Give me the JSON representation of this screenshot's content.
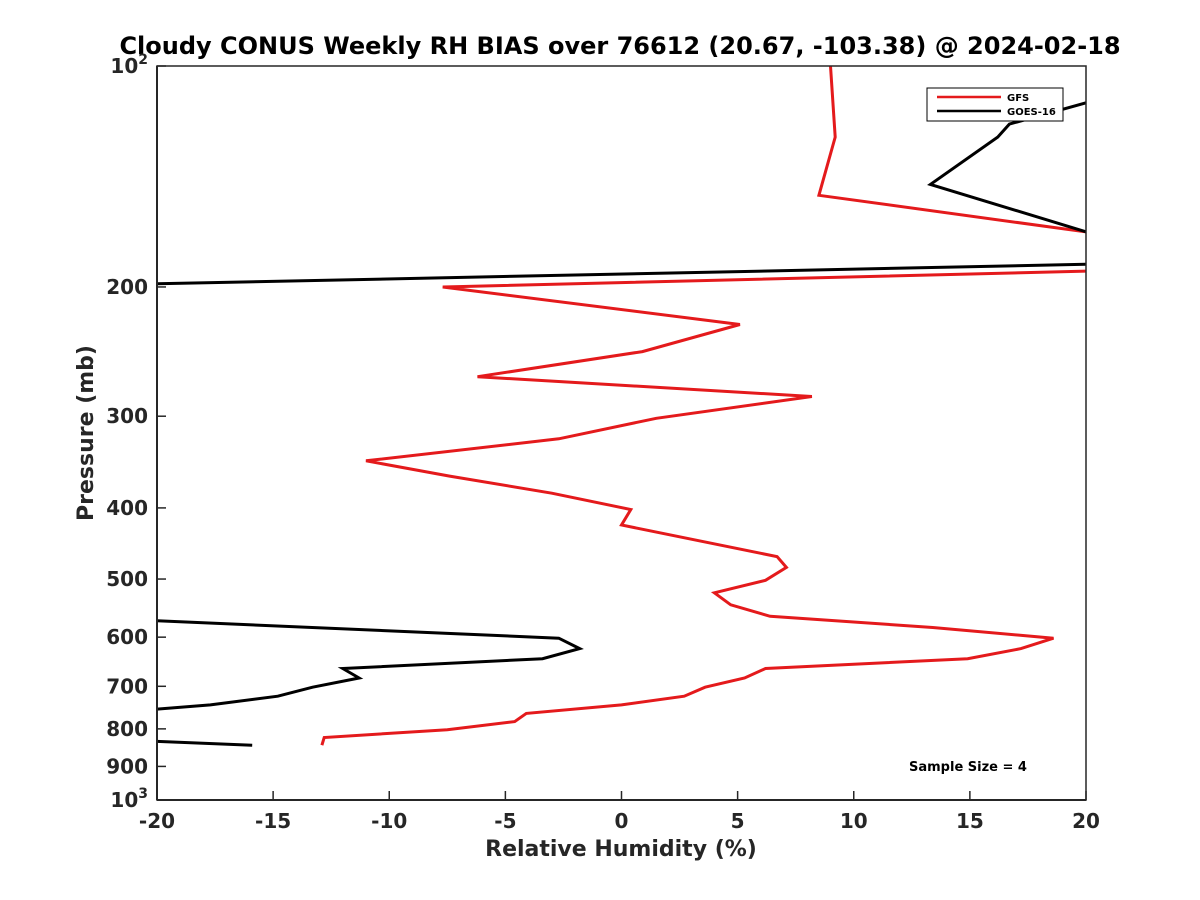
{
  "chart_data": {
    "type": "line",
    "title": "Cloudy CONUS Weekly RH BIAS over 76612 (20.67, -103.38) @ 2024-02-18",
    "xlabel": "Relative Humidity (%)",
    "ylabel": "Pressure (mb)",
    "xlim": [
      -20,
      20
    ],
    "ylim": [
      100,
      1000
    ],
    "yscale": "log",
    "yreversed": true,
    "grid": false,
    "legend_position": "top-right",
    "annotation": "Sample Size = 4",
    "x_ticks": [
      {
        "value": -20,
        "label": "-20"
      },
      {
        "value": -15,
        "label": "-15"
      },
      {
        "value": -10,
        "label": "-10"
      },
      {
        "value": -5,
        "label": "-5"
      },
      {
        "value": 0,
        "label": "0"
      },
      {
        "value": 5,
        "label": "5"
      },
      {
        "value": 10,
        "label": "10"
      },
      {
        "value": 15,
        "label": "15"
      },
      {
        "value": 20,
        "label": "20"
      }
    ],
    "y_ticks": [
      {
        "value": 100,
        "base": "10",
        "exp": "2"
      },
      {
        "value": 200,
        "label": "200"
      },
      {
        "value": 300,
        "label": "300"
      },
      {
        "value": 400,
        "label": "400"
      },
      {
        "value": 500,
        "label": "500"
      },
      {
        "value": 600,
        "label": "600"
      },
      {
        "value": 700,
        "label": "700"
      },
      {
        "value": 800,
        "label": "800"
      },
      {
        "value": 900,
        "label": "900"
      },
      {
        "value": 1000,
        "base": "10",
        "exp": "3"
      }
    ],
    "series": [
      {
        "name": "GFS",
        "color": "#e41a1c",
        "segments": [
          [
            [
              9.0,
              100
            ],
            [
              9.2,
              125
            ],
            [
              8.5,
              150
            ],
            [
              21.0,
              170
            ]
          ],
          [
            [
              21.0,
              190
            ],
            [
              -7.7,
              200
            ],
            [
              5.1,
              225
            ],
            [
              0.9,
              245
            ],
            [
              -6.2,
              265
            ],
            [
              8.2,
              282
            ],
            [
              1.5,
              302
            ],
            [
              -2.7,
              322
            ],
            [
              -11.0,
              345
            ],
            [
              -7.4,
              362
            ],
            [
              -3.0,
              382
            ],
            [
              0.4,
              402
            ],
            [
              0.0,
              422
            ],
            [
              6.7,
              466
            ],
            [
              7.1,
              482
            ],
            [
              6.2,
              502
            ],
            [
              4.0,
              522
            ],
            [
              4.7,
              542
            ],
            [
              6.4,
              562
            ],
            [
              13.4,
              582
            ],
            [
              18.6,
              602
            ],
            [
              17.2,
              622
            ],
            [
              14.9,
              642
            ],
            [
              6.2,
              662
            ],
            [
              5.3,
              682
            ],
            [
              3.6,
              702
            ],
            [
              2.7,
              722
            ],
            [
              0.0,
              742
            ],
            [
              -4.1,
              762
            ],
            [
              -4.6,
              782
            ],
            [
              -7.5,
              802
            ],
            [
              -12.8,
              822
            ],
            [
              -12.9,
              842
            ]
          ]
        ]
      },
      {
        "name": "GOES-16",
        "color": "#000000",
        "segments": [
          [
            [
              21.0,
              110
            ],
            [
              16.7,
              120
            ],
            [
              16.2,
              125
            ],
            [
              13.3,
              145
            ],
            [
              21.0,
              172
            ]
          ],
          [
            [
              21.0,
              186
            ],
            [
              -20.0,
              198
            ]
          ],
          [
            [
              -20.0,
              570
            ],
            [
              -2.7,
              602
            ],
            [
              -1.8,
              622
            ],
            [
              -3.4,
              642
            ],
            [
              -12.0,
              662
            ],
            [
              -11.3,
              682
            ],
            [
              -13.3,
              702
            ],
            [
              -14.8,
              722
            ],
            [
              -17.7,
              742
            ],
            [
              -20.0,
              752
            ]
          ],
          [
            [
              -20.0,
              832
            ],
            [
              -15.9,
              842
            ]
          ]
        ]
      }
    ]
  }
}
